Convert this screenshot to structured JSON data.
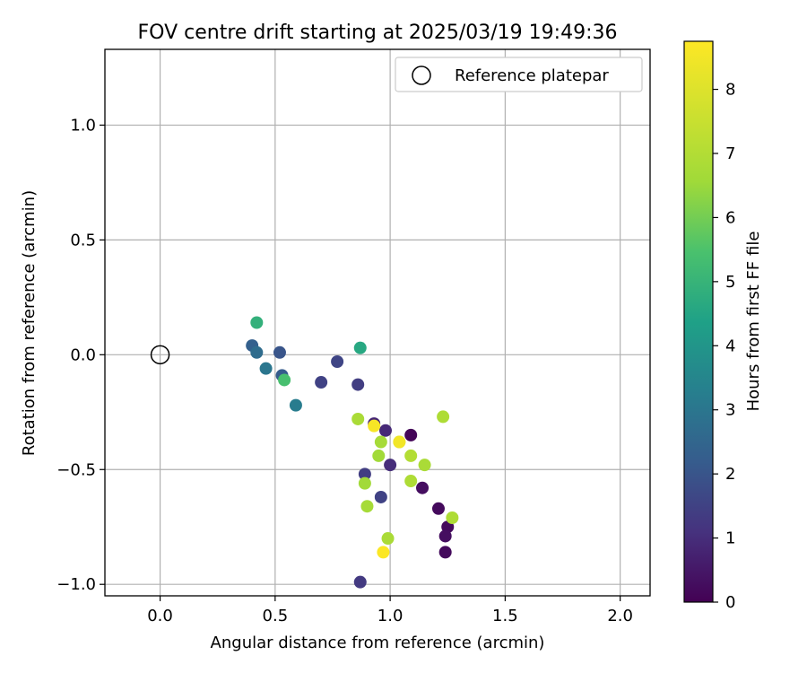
{
  "chart_data": {
    "type": "scatter",
    "title": "FOV centre drift starting at 2025/03/19 19:49:36",
    "xlabel": "Angular distance from reference (arcmin)",
    "ylabel": "Rotation from reference (arcmin)",
    "xlim": [
      -0.24,
      2.13
    ],
    "ylim": [
      -1.05,
      1.33
    ],
    "xticks": [
      0.0,
      0.5,
      1.0,
      1.5,
      2.0
    ],
    "xtick_labels": [
      "0.0",
      "0.5",
      "1.0",
      "1.5",
      "2.0"
    ],
    "yticks": [
      -1.0,
      -0.5,
      0.0,
      0.5,
      1.0
    ],
    "ytick_labels": [
      "−1.0",
      "−0.5",
      "0.0",
      "0.5",
      "1.0"
    ],
    "grid": true,
    "legend": {
      "placement": "top-right",
      "entries": [
        {
          "label": "Reference platepar",
          "marker": "open-circle"
        }
      ]
    },
    "reference_point": {
      "x": 0.0,
      "y": 0.0
    },
    "colorbar": {
      "label": "Hours from first FF file",
      "colormap": "viridis",
      "range": [
        0,
        8.75
      ],
      "ticks": [
        0,
        1,
        2,
        3,
        4,
        5,
        6,
        7,
        8
      ],
      "tick_labels": [
        "0",
        "1",
        "2",
        "3",
        "4",
        "5",
        "6",
        "7",
        "8"
      ]
    },
    "series": [
      {
        "points": [
          {
            "x": 1.09,
            "y": -0.35,
            "h": 0.1
          },
          {
            "x": 1.14,
            "y": -0.58,
            "h": 0.3
          },
          {
            "x": 1.21,
            "y": -0.67,
            "h": 0.2
          },
          {
            "x": 1.25,
            "y": -0.75,
            "h": 0.2
          },
          {
            "x": 1.24,
            "y": -0.79,
            "h": 0.3
          },
          {
            "x": 1.24,
            "y": -0.86,
            "h": 0.2
          },
          {
            "x": 0.98,
            "y": -0.33,
            "h": 0.9
          },
          {
            "x": 0.93,
            "y": -0.3,
            "h": 0.8
          },
          {
            "x": 1.0,
            "y": -0.48,
            "h": 1.0
          },
          {
            "x": 0.89,
            "y": -0.52,
            "h": 1.4
          },
          {
            "x": 0.96,
            "y": -0.62,
            "h": 1.5
          },
          {
            "x": 0.87,
            "y": -0.99,
            "h": 1.3
          },
          {
            "x": 0.86,
            "y": -0.13,
            "h": 1.4
          },
          {
            "x": 0.77,
            "y": -0.03,
            "h": 1.6
          },
          {
            "x": 0.7,
            "y": -0.12,
            "h": 1.5
          },
          {
            "x": 0.52,
            "y": 0.01,
            "h": 2.0
          },
          {
            "x": 0.53,
            "y": -0.09,
            "h": 2.2
          },
          {
            "x": 0.4,
            "y": 0.04,
            "h": 2.3
          },
          {
            "x": 0.42,
            "y": 0.01,
            "h": 2.7
          },
          {
            "x": 0.46,
            "y": -0.06,
            "h": 3.0
          },
          {
            "x": 0.59,
            "y": -0.22,
            "h": 3.2
          },
          {
            "x": 0.87,
            "y": 0.03,
            "h": 4.6
          },
          {
            "x": 0.42,
            "y": 0.14,
            "h": 4.9
          },
          {
            "x": 0.54,
            "y": -0.11,
            "h": 5.4
          },
          {
            "x": 0.86,
            "y": -0.28,
            "h": 6.8
          },
          {
            "x": 0.89,
            "y": -0.56,
            "h": 6.6
          },
          {
            "x": 0.9,
            "y": -0.66,
            "h": 6.7
          },
          {
            "x": 0.95,
            "y": -0.44,
            "h": 6.6
          },
          {
            "x": 0.96,
            "y": -0.38,
            "h": 6.7
          },
          {
            "x": 0.99,
            "y": -0.8,
            "h": 6.8
          },
          {
            "x": 1.04,
            "y": -0.38,
            "h": 7.1
          },
          {
            "x": 1.09,
            "y": -0.44,
            "h": 7.0
          },
          {
            "x": 1.09,
            "y": -0.55,
            "h": 6.9
          },
          {
            "x": 1.15,
            "y": -0.48,
            "h": 6.8
          },
          {
            "x": 1.23,
            "y": -0.27,
            "h": 6.9
          },
          {
            "x": 1.27,
            "y": -0.71,
            "h": 6.9
          },
          {
            "x": 0.93,
            "y": -0.31,
            "h": 8.6
          },
          {
            "x": 1.04,
            "y": -0.38,
            "h": 8.5
          },
          {
            "x": 0.97,
            "y": -0.86,
            "h": 8.7
          }
        ]
      }
    ]
  }
}
